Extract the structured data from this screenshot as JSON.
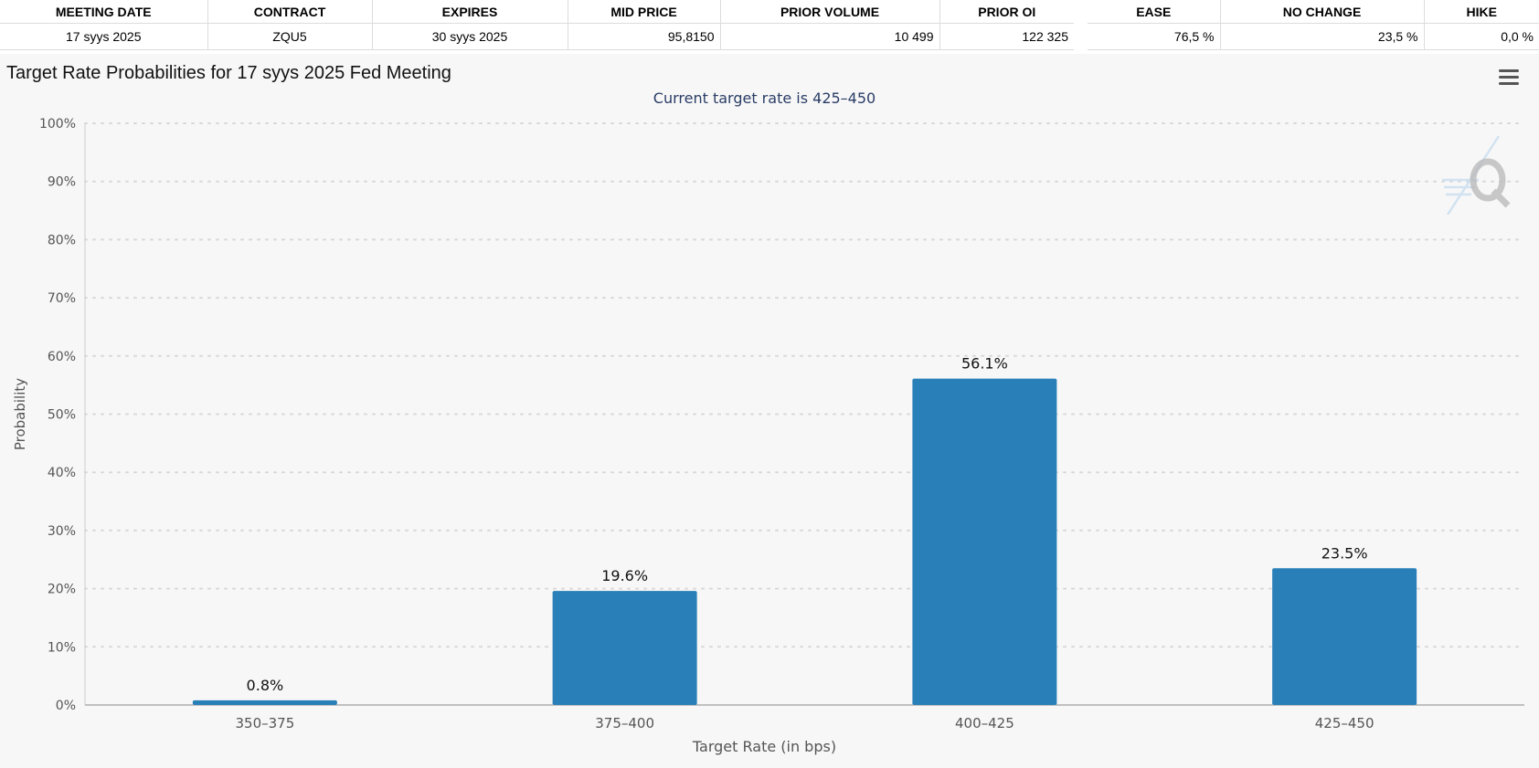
{
  "meeting_table": {
    "headers": [
      "MEETING DATE",
      "CONTRACT",
      "EXPIRES",
      "MID PRICE",
      "PRIOR VOLUME",
      "PRIOR OI"
    ],
    "row": [
      "17 syys 2025",
      "ZQU5",
      "30 syys 2025",
      "95,8150",
      "10 499",
      "122 325"
    ]
  },
  "probability_table": {
    "headers": [
      "EASE",
      "NO CHANGE",
      "HIKE"
    ],
    "row": [
      "76,5 %",
      "23,5 %",
      "0,0 %"
    ]
  },
  "chart_title": "Target Rate Probabilities for 17 syys 2025 Fed Meeting",
  "menu_icon": "hamburger-menu-icon",
  "watermark_icon": "q-logo-icon",
  "chart_data": {
    "type": "bar",
    "title": "Target Rate Probabilities for 17 syys 2025 Fed Meeting",
    "subtitle": "Current target rate is 425–450",
    "xlabel": "Target Rate (in bps)",
    "ylabel": "Probability",
    "categories": [
      "350–375",
      "375–400",
      "400–425",
      "425–450"
    ],
    "values": [
      0.8,
      19.6,
      56.1,
      23.5
    ],
    "data_labels": [
      "0.8%",
      "19.6%",
      "56.1%",
      "23.5%"
    ],
    "ylim": [
      0,
      100
    ],
    "yticks": [
      "0%",
      "10%",
      "20%",
      "30%",
      "40%",
      "50%",
      "60%",
      "70%",
      "80%",
      "90%",
      "100%"
    ],
    "grid": true,
    "bar_color": "#2980b9",
    "subtitle_color": "#2a3d66",
    "axis_text_color": "#555555"
  }
}
